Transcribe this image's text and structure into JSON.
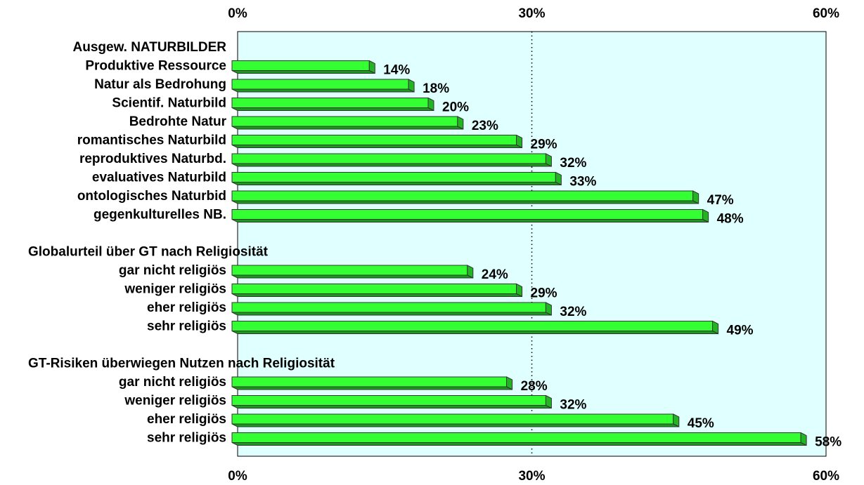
{
  "chart_data": {
    "type": "bar",
    "orientation": "horizontal",
    "categories": [
      "Ausgew. NATURBILDER",
      "Produktive Ressource",
      "Natur als Bedrohung",
      "Scientif. Naturbild",
      "Bedrohte Natur",
      "romantisches Naturbild",
      "reproduktives Naturbd.",
      "evaluatives Naturbild",
      "ontologisches Naturbid",
      "gegenkulturelles NB.",
      null,
      "Globalurteil über GT nach Religiosität",
      "gar nicht religiös",
      "weniger religiös",
      "eher religiös",
      "sehr religiös",
      null,
      "GT-Risiken überwiegen Nutzen nach Religiosität",
      "gar nicht religiös",
      "weniger religiös",
      "eher religiös",
      "sehr religiös"
    ],
    "values": [
      null,
      14,
      18,
      20,
      23,
      29,
      32,
      33,
      47,
      48,
      null,
      null,
      24,
      29,
      32,
      49,
      null,
      null,
      28,
      32,
      45,
      58
    ],
    "value_labels": [
      null,
      "14%",
      "18%",
      "20%",
      "23%",
      "29%",
      "32%",
      "33%",
      "47%",
      "48%",
      null,
      null,
      "24%",
      "29%",
      "32%",
      "49%",
      null,
      null,
      "28%",
      "32%",
      "45%",
      "58%"
    ],
    "color": "#33ff33",
    "xlim": [
      0,
      60
    ],
    "xticks": [
      {
        "value": 0,
        "label": "0%"
      },
      {
        "value": 30,
        "label": "30%"
      },
      {
        "value": 60,
        "label": "60%"
      }
    ],
    "grid": true
  }
}
